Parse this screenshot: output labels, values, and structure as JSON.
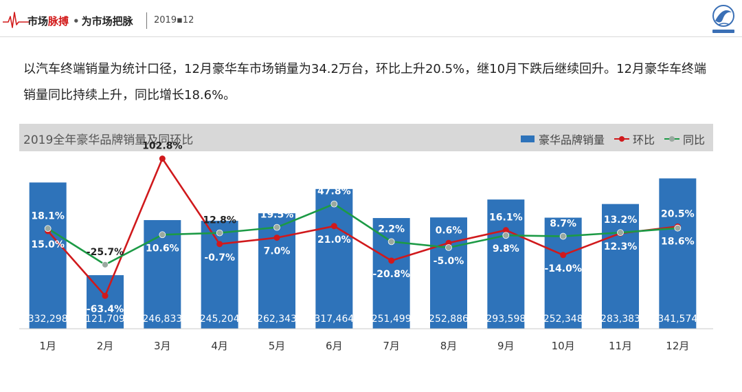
{
  "header": {
    "brand_prefix": "市场",
    "brand_highlight": "脉搏",
    "brand_dot": "•",
    "brand_suffix": "为市场把脉",
    "date": "2019▪12"
  },
  "summary": "以汽车终端销量为统计口径，12月豪华车市场销量为34.2万台，环比上升20.5%，继10月下跌后继续回升。12月豪华车终端销量同比持续上升，同比增长18.6%。",
  "chart": {
    "title": "2019全年豪华品牌销量及同环比",
    "legend": {
      "bar": "豪华品牌销量",
      "mom": "环比",
      "yoy": "同比"
    },
    "colors": {
      "bar": "#2e73ba",
      "mom": "#d0191c",
      "yoy": "#1c9a45",
      "yoy_marker": "#9aa9a0"
    }
  },
  "chart_data": {
    "type": "bar",
    "title": "2019全年豪华品牌销量及同环比",
    "categories": [
      "1月",
      "2月",
      "3月",
      "4月",
      "5月",
      "6月",
      "7月",
      "8月",
      "9月",
      "10月",
      "11月",
      "12月"
    ],
    "series": [
      {
        "name": "豪华品牌销量",
        "type": "bar",
        "values": [
          332298,
          121709,
          246833,
          245204,
          262343,
          317464,
          251499,
          252886,
          293598,
          252348,
          283383,
          341574
        ],
        "labels": [
          "332,298",
          "121,709",
          "246,833",
          "245,204",
          "262,343",
          "317,464",
          "251,499",
          "252,886",
          "293,598",
          "252,348",
          "283,383",
          "341,574"
        ]
      },
      {
        "name": "环比",
        "type": "line",
        "values": [
          15.0,
          -63.4,
          102.8,
          -0.7,
          7.0,
          21.0,
          -20.8,
          0.6,
          16.1,
          -14.0,
          12.3,
          20.5
        ],
        "labels": [
          "15.0%",
          "-63.4%",
          "102.8%",
          "-0.7%",
          "7.0%",
          "21.0%",
          "-20.8%",
          "0.6%",
          "16.1%",
          "-14.0%",
          "12.3%",
          "20.5%"
        ]
      },
      {
        "name": "同比",
        "type": "line",
        "values": [
          18.1,
          -25.7,
          10.6,
          12.8,
          19.5,
          47.8,
          2.2,
          -5.0,
          9.8,
          8.7,
          13.2,
          18.6
        ],
        "labels": [
          "18.1%",
          "-25.7%",
          "10.6%",
          "12.8%",
          "19.5%",
          "47.8%",
          "2.2%",
          "-5.0%",
          "9.8%",
          "8.7%",
          "13.2%",
          "18.6%"
        ]
      }
    ],
    "ylim_bar": [
      0,
      380000
    ],
    "ylim_pct": [
      -80,
      130
    ],
    "legend_position": "top-right",
    "grid": false
  }
}
